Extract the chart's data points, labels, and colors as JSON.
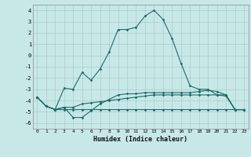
{
  "xlabel": "Humidex (Indice chaleur)",
  "x": [
    0,
    1,
    2,
    3,
    4,
    5,
    6,
    7,
    8,
    9,
    10,
    11,
    12,
    13,
    14,
    15,
    16,
    17,
    18,
    19,
    20,
    21,
    22,
    23
  ],
  "line1": [
    -3.7,
    -4.5,
    -4.8,
    -4.8,
    -4.8,
    -4.8,
    -4.8,
    -4.8,
    -4.8,
    -4.8,
    -4.8,
    -4.8,
    -4.8,
    -4.8,
    -4.8,
    -4.8,
    -4.8,
    -4.8,
    -4.8,
    -4.8,
    -4.8,
    -4.8,
    -4.8,
    -4.8
  ],
  "line2": [
    -3.7,
    -4.5,
    -4.8,
    -4.6,
    -4.6,
    -4.3,
    -4.2,
    -4.1,
    -4.0,
    -3.9,
    -3.8,
    -3.7,
    -3.6,
    -3.5,
    -3.5,
    -3.5,
    -3.5,
    -3.5,
    -3.5,
    -3.5,
    -3.5,
    -3.6,
    -4.8,
    -4.8
  ],
  "line3": [
    -3.7,
    -4.5,
    -4.8,
    -4.6,
    -5.5,
    -5.5,
    -4.9,
    -4.3,
    -3.9,
    -3.5,
    -3.4,
    -3.4,
    -3.3,
    -3.3,
    -3.3,
    -3.3,
    -3.3,
    -3.3,
    -3.2,
    -3.1,
    -3.2,
    -3.5,
    -4.8,
    -4.8
  ],
  "line4": [
    -3.7,
    -4.5,
    -4.8,
    -2.9,
    -3.0,
    -1.5,
    -2.2,
    -1.2,
    0.3,
    2.3,
    2.3,
    2.5,
    3.5,
    4.0,
    3.2,
    1.5,
    -0.7,
    -2.7,
    -3.0,
    -3.0,
    -3.5,
    -3.5,
    -4.8,
    -4.8
  ],
  "bg_color": "#c8e8e8",
  "grid_color": "#aacccc",
  "line_color": "#1a6b6b",
  "ylim": [
    -6.5,
    4.5
  ],
  "yticks": [
    -6,
    -5,
    -4,
    -3,
    -2,
    -1,
    0,
    1,
    2,
    3,
    4
  ]
}
